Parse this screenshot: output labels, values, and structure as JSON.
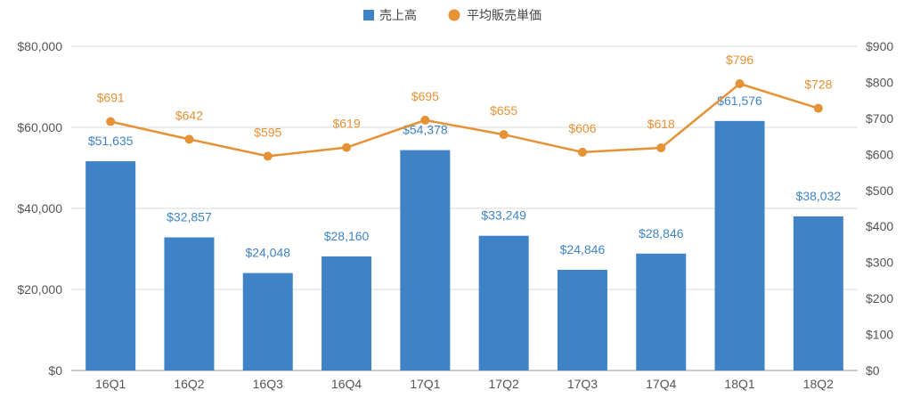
{
  "legend": {
    "bar_series_label": "売上高",
    "line_series_label": "平均販売単価"
  },
  "colors": {
    "bar": "#3f83c6",
    "line": "#e59135",
    "grid": "#d9d9d9",
    "axis": "#999999"
  },
  "chart_data": {
    "type": "bar",
    "categories": [
      "16Q1",
      "16Q2",
      "16Q3",
      "16Q4",
      "17Q1",
      "17Q2",
      "17Q3",
      "17Q4",
      "18Q1",
      "18Q2"
    ],
    "series": [
      {
        "name": "売上高",
        "type": "bar",
        "axis": "left",
        "values": [
          51635,
          32857,
          24048,
          28160,
          54378,
          33249,
          24846,
          28846,
          61576,
          38032
        ],
        "labels": [
          "$51,635",
          "$32,857",
          "$24,048",
          "$28,160",
          "$54,378",
          "$33,249",
          "$24,846",
          "$28,846",
          "$61,576",
          "$38,032"
        ]
      },
      {
        "name": "平均販売単価",
        "type": "line",
        "axis": "right",
        "values": [
          691,
          642,
          595,
          619,
          695,
          655,
          606,
          618,
          796,
          728
        ],
        "labels": [
          "$691",
          "$642",
          "$595",
          "$619",
          "$695",
          "$655",
          "$606",
          "$618",
          "$796",
          "$728"
        ]
      }
    ],
    "left_axis": {
      "ylim": [
        0,
        80000
      ],
      "ticks": [
        "$0",
        "$20,000",
        "$40,000",
        "$60,000",
        "$80,000"
      ]
    },
    "right_axis": {
      "ylim": [
        0,
        900
      ],
      "ticks": [
        "$0",
        "$100",
        "$200",
        "$300",
        "$400",
        "$500",
        "$600",
        "$700",
        "$800",
        "$900"
      ]
    },
    "grid": true,
    "legend_position": "top-center"
  }
}
